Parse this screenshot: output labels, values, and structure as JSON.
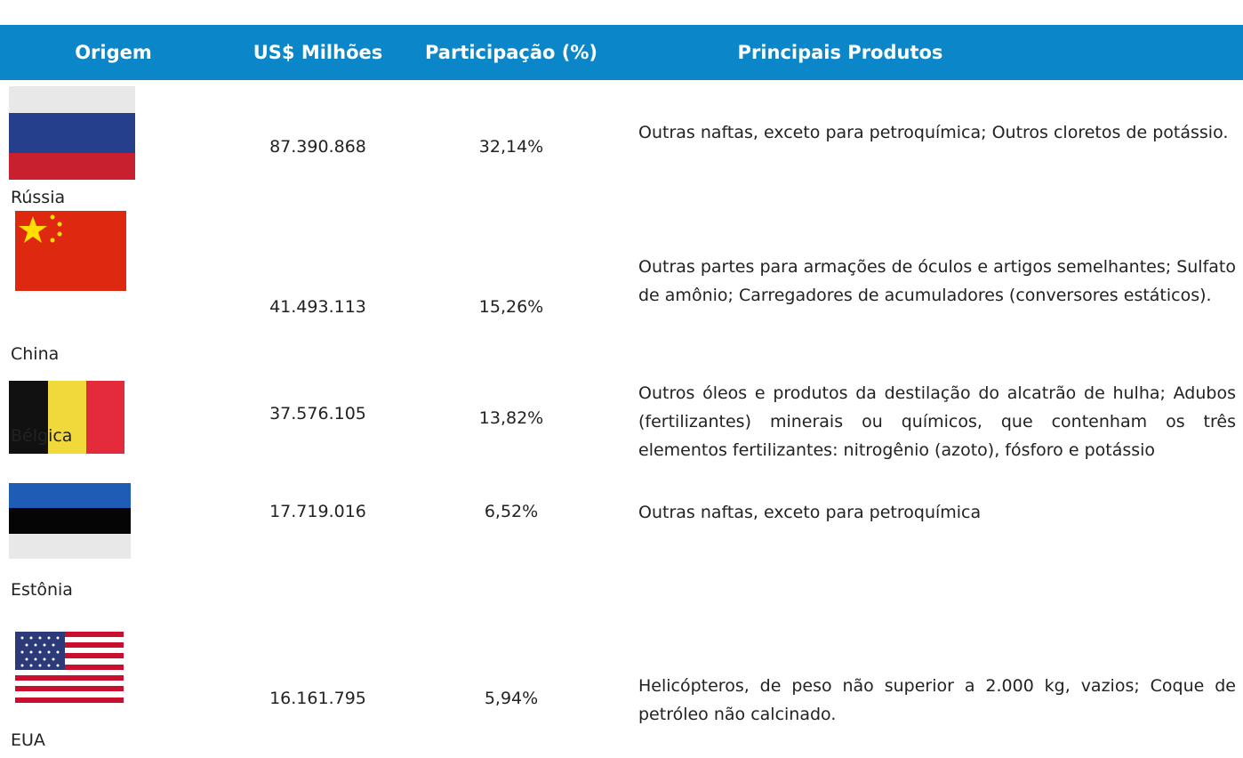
{
  "table": {
    "header": [
      "Origem",
      "US$ Milhões",
      "Participação (%)",
      "Principais Produtos"
    ],
    "rows": [
      [
        "Rússia",
        "87.390.868",
        "32,14%",
        "Outras naftas, exceto para petroquímica; Outros cloretos de potássio."
      ],
      [
        "China",
        "41.493.113",
        "15,26%",
        "Outras partes para armações de óculos e artigos semelhantes; Sulfato de amônio; Carregadores de acumuladores (conversores estáticos)."
      ],
      [
        "Bélgica",
        "37.576.105",
        "13,82%",
        "Outros óleos e produtos da destilação do alcatrão de hulha; Adubos (fertilizantes) minerais ou químicos, que contenham os três elementos fertilizantes: nitrogênio (azoto), fósforo e potássio"
      ],
      [
        "Estônia",
        "17.719.016",
        "6,52%",
        "Outras naftas, exceto para petroquímica"
      ],
      [
        "EUA",
        "16.161.795",
        "5,94%",
        "Helicópteros, de peso não superior a 2.000 kg, vazios; Coque de petróleo não calcinado."
      ]
    ]
  }
}
